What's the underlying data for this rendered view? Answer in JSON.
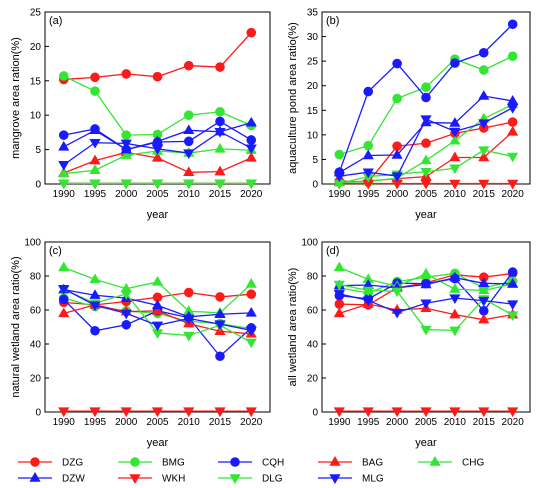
{
  "colors": {
    "red": "#ff1a1a",
    "green": "#33e633",
    "blue": "#1a1aff"
  },
  "legend": [
    {
      "name": "DZG",
      "color": "#ff1a1a",
      "marker": "circle"
    },
    {
      "name": "BMG",
      "color": "#33e633",
      "marker": "circle"
    },
    {
      "name": "CQH",
      "color": "#1a1aff",
      "marker": "circle"
    },
    {
      "name": "BAG",
      "color": "#ff1a1a",
      "marker": "triangle-up"
    },
    {
      "name": "CHG",
      "color": "#33e633",
      "marker": "triangle-up"
    },
    {
      "name": "DZW",
      "color": "#1a1aff",
      "marker": "triangle-up"
    },
    {
      "name": "WKH",
      "color": "#ff1a1a",
      "marker": "triangle-down"
    },
    {
      "name": "DLG",
      "color": "#33e633",
      "marker": "triangle-down"
    },
    {
      "name": "MLG",
      "color": "#1a1aff",
      "marker": "triangle-down"
    }
  ],
  "chart_data": [
    {
      "panel": "(a)",
      "type": "line",
      "xlabel": "year",
      "ylabel": "mangrove area ration(%)",
      "x": [
        1990,
        1995,
        2000,
        2005,
        2010,
        2015,
        2020
      ],
      "xlim": [
        1987,
        2023
      ],
      "ylim": [
        0,
        25
      ],
      "yticks": [
        0,
        5,
        10,
        15,
        20,
        25
      ],
      "series": [
        {
          "name": "DZG",
          "values": [
            15.2,
            15.5,
            16.0,
            15.6,
            17.2,
            17.0,
            22.0
          ]
        },
        {
          "name": "BMG",
          "values": [
            15.7,
            13.5,
            7.1,
            7.2,
            10.0,
            10.5,
            8.5
          ]
        },
        {
          "name": "CQH",
          "values": [
            7.1,
            8.0,
            5.0,
            6.1,
            6.2,
            9.1,
            6.4
          ]
        },
        {
          "name": "BAG",
          "values": [
            1.6,
            3.4,
            4.6,
            3.8,
            1.7,
            1.8,
            3.8
          ]
        },
        {
          "name": "CHG",
          "values": [
            1.5,
            2.0,
            4.2,
            4.8,
            4.5,
            5.1,
            4.9
          ]
        },
        {
          "name": "DZW",
          "values": [
            5.4,
            7.8,
            5.0,
            6.2,
            7.8,
            7.6,
            8.9
          ]
        },
        {
          "name": "WKH",
          "values": [
            0.1,
            0.1,
            0.1,
            0.1,
            0.1,
            0.1,
            0.1
          ]
        },
        {
          "name": "DLG",
          "values": [
            0.1,
            0.1,
            0.1,
            0.1,
            0.1,
            0.1,
            0.1
          ]
        },
        {
          "name": "MLG",
          "values": [
            2.8,
            6.0,
            5.9,
            5.1,
            4.5,
            7.6,
            5.2
          ]
        }
      ]
    },
    {
      "panel": "(b)",
      "type": "line",
      "xlabel": "year",
      "ylabel": "aquaculture pond area ratio(%)",
      "x": [
        1990,
        1995,
        2000,
        2005,
        2010,
        2015,
        2020
      ],
      "xlim": [
        1987,
        2023
      ],
      "ylim": [
        0,
        35
      ],
      "yticks": [
        0,
        5,
        10,
        15,
        20,
        25,
        30,
        35
      ],
      "series": [
        {
          "name": "DZG",
          "values": [
            0.6,
            0.4,
            7.7,
            8.3,
            10.3,
            11.4,
            12.6
          ]
        },
        {
          "name": "BMG",
          "values": [
            6.0,
            7.8,
            17.4,
            19.7,
            25.4,
            23.2,
            26.0
          ]
        },
        {
          "name": "CQH",
          "values": [
            2.4,
            18.8,
            24.5,
            17.6,
            24.6,
            26.7,
            32.5
          ]
        },
        {
          "name": "BAG",
          "values": [
            0.3,
            0.6,
            1.1,
            1.5,
            5.4,
            5.4,
            10.6
          ]
        },
        {
          "name": "CHG",
          "values": [
            0.3,
            0.5,
            1.2,
            4.8,
            8.8,
            13.3,
            16.2
          ]
        },
        {
          "name": "DZW",
          "values": [
            2.3,
            5.8,
            5.9,
            12.5,
            12.4,
            17.9,
            16.9
          ]
        },
        {
          "name": "WKH",
          "values": [
            0.1,
            0.1,
            0.1,
            0.1,
            0.1,
            0.1,
            0.1
          ]
        },
        {
          "name": "DLG",
          "values": [
            0.1,
            1.5,
            2.0,
            2.5,
            3.2,
            6.9,
            5.6
          ]
        },
        {
          "name": "MLG",
          "values": [
            1.6,
            2.4,
            1.6,
            13.2,
            10.7,
            12.4,
            15.5
          ]
        }
      ]
    },
    {
      "panel": "(c)",
      "type": "line",
      "xlabel": "year",
      "ylabel": "natural wetland area ratio(%)",
      "x": [
        1990,
        1995,
        2000,
        2005,
        2010,
        2015,
        2020
      ],
      "xlim": [
        1987,
        2023
      ],
      "ylim": [
        0,
        100
      ],
      "yticks": [
        0,
        20,
        40,
        60,
        80,
        100
      ],
      "series": [
        {
          "name": "DZG",
          "values": [
            64.5,
            63.0,
            65.0,
            67.5,
            70.3,
            67.7,
            69.3
          ]
        },
        {
          "name": "BMG",
          "values": [
            67.0,
            62.0,
            59.5,
            58.0,
            53.3,
            52.0,
            49.0
          ]
        },
        {
          "name": "CQH",
          "values": [
            66.2,
            47.8,
            51.3,
            59.5,
            55.5,
            32.8,
            49.5
          ]
        },
        {
          "name": "BAG",
          "values": [
            58.0,
            63.0,
            59.0,
            59.5,
            52.0,
            47.5,
            46.0
          ]
        },
        {
          "name": "CHG",
          "values": [
            85.0,
            78.0,
            72.5,
            76.5,
            59.3,
            58.3,
            75.3
          ]
        },
        {
          "name": "DZW",
          "values": [
            72.0,
            68.7,
            67.0,
            62.7,
            56.0,
            57.5,
            58.3
          ]
        },
        {
          "name": "WKH",
          "values": [
            0.5,
            0.5,
            0.5,
            0.5,
            0.5,
            0.5,
            0.5
          ]
        },
        {
          "name": "DLG",
          "values": [
            72.0,
            64.0,
            69.5,
            46.5,
            45.0,
            51.0,
            41.0
          ]
        },
        {
          "name": "MLG",
          "values": [
            72.5,
            62.8,
            58.0,
            51.0,
            55.0,
            51.7,
            48.0
          ]
        }
      ]
    },
    {
      "panel": "(d)",
      "type": "line",
      "xlabel": "year",
      "ylabel": "all wetland area ratio(%)",
      "x": [
        1990,
        1995,
        2000,
        2005,
        2010,
        2015,
        2020
      ],
      "xlim": [
        1987,
        2023
      ],
      "ylim": [
        0,
        100
      ],
      "yticks": [
        0,
        20,
        40,
        60,
        80,
        100
      ],
      "series": [
        {
          "name": "DZG",
          "values": [
            63.5,
            63.0,
            73.0,
            76.0,
            80.7,
            79.3,
            81.5
          ]
        },
        {
          "name": "BMG",
          "values": [
            73.0,
            70.0,
            76.7,
            79.3,
            81.5,
            73.0,
            77.0
          ]
        },
        {
          "name": "CQH",
          "values": [
            68.5,
            66.5,
            75.8,
            75.5,
            78.5,
            59.5,
            82.3
          ]
        },
        {
          "name": "BAG",
          "values": [
            58.0,
            63.5,
            60.0,
            61.0,
            57.3,
            54.3,
            57.3
          ]
        },
        {
          "name": "CHG",
          "values": [
            85.0,
            78.0,
            74.0,
            81.3,
            72.3,
            71.5,
            75.3
          ]
        },
        {
          "name": "DZW",
          "values": [
            74.3,
            74.7,
            73.0,
            75.0,
            79.0,
            75.7,
            75.3
          ]
        },
        {
          "name": "WKH",
          "values": [
            0.5,
            0.5,
            0.5,
            0.5,
            0.5,
            0.5,
            0.5
          ]
        },
        {
          "name": "DLG",
          "values": [
            75.0,
            71.5,
            71.0,
            48.5,
            48.0,
            66.5,
            57.0
          ]
        },
        {
          "name": "MLG",
          "values": [
            69.5,
            65.7,
            58.5,
            64.0,
            67.0,
            65.5,
            63.5
          ]
        }
      ]
    }
  ]
}
